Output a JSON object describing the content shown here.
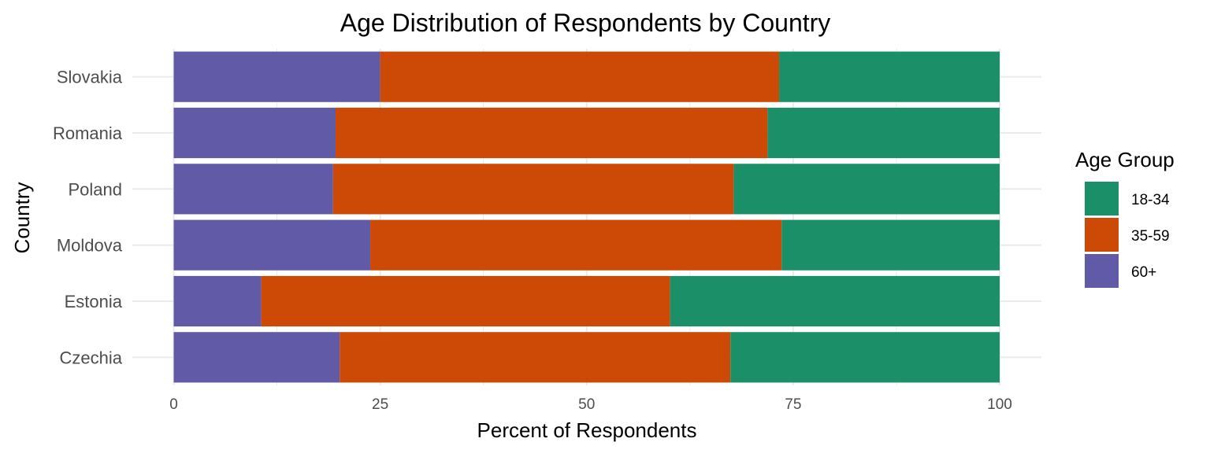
{
  "chart_data": {
    "type": "bar",
    "orientation": "horizontal",
    "stacked": true,
    "title": "Age Distribution of Respondents by Country",
    "xlabel": "Percent of Respondents",
    "ylabel": "Country",
    "xlim": [
      0,
      100
    ],
    "x_ticks": [
      "0",
      "25",
      "50",
      "75",
      "100"
    ],
    "grid": true,
    "legend_title": "Age Group",
    "legend_position": "right",
    "legend": [
      {
        "name": "18-34",
        "color": "#1b9068"
      },
      {
        "name": "35-59",
        "color": "#cc4a06"
      },
      {
        "name": "60+",
        "color": "#615aa6"
      }
    ],
    "categories": [
      "Slovakia",
      "Romania",
      "Poland",
      "Moldova",
      "Estonia",
      "Czechia"
    ],
    "series": [
      {
        "name": "60+",
        "color": "#615aa6",
        "values": [
          25.0,
          19.6,
          19.3,
          23.8,
          10.6,
          20.1
        ]
      },
      {
        "name": "35-59",
        "color": "#cc4a06",
        "values": [
          48.3,
          52.3,
          48.5,
          49.8,
          49.5,
          47.3
        ]
      },
      {
        "name": "18-34",
        "color": "#1b9068",
        "values": [
          26.7,
          28.1,
          32.2,
          26.4,
          39.9,
          32.6
        ]
      }
    ]
  }
}
